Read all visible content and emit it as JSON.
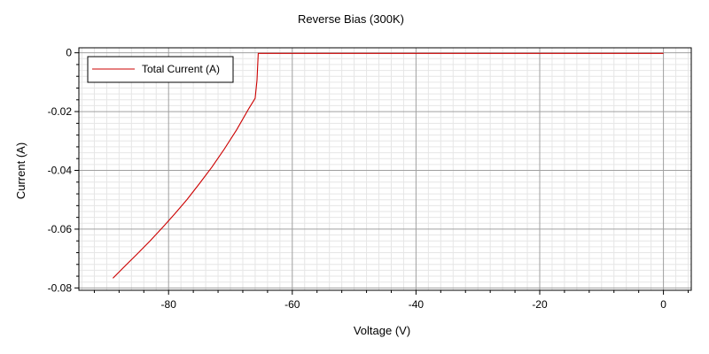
{
  "chart_data": {
    "type": "line",
    "title": "Reverse Bias (300K)",
    "xlabel": "Voltage (V)",
    "ylabel": "Current (A)",
    "xlim": [
      -94.5,
      4.5
    ],
    "ylim": [
      -0.0808,
      0.0017
    ],
    "x_ticks": [
      -80,
      -60,
      -40,
      -20,
      0
    ],
    "x_tick_labels": [
      "-80",
      "-60",
      "-40",
      "-20",
      "0"
    ],
    "y_ticks": [
      0,
      -0.02,
      -0.04,
      -0.06,
      -0.08
    ],
    "y_tick_labels": [
      "0",
      "-0.02",
      "-0.04",
      "-0.06",
      "-0.08"
    ],
    "grid": true,
    "legend_position": "top-left",
    "colors": {
      "series": "#cc0000",
      "major_grid": "#a0a0a0",
      "minor_grid": "#e6e6e6"
    },
    "series": [
      {
        "name": "Total Current (A)",
        "x": [
          -89,
          -87,
          -85,
          -83,
          -81,
          -79,
          -77,
          -75,
          -73,
          -71,
          -69,
          -67,
          -66,
          -65.7,
          -65.5,
          -64,
          -60,
          -40,
          -20,
          0
        ],
        "y": [
          -0.0767,
          -0.0725,
          -0.0683,
          -0.064,
          -0.0595,
          -0.0548,
          -0.0499,
          -0.0445,
          -0.0389,
          -0.0328,
          -0.0262,
          -0.0189,
          -0.0155,
          -0.0093,
          -0.0002,
          -0.0002,
          -0.0002,
          -0.0002,
          -0.0002,
          -0.0002
        ]
      }
    ]
  }
}
